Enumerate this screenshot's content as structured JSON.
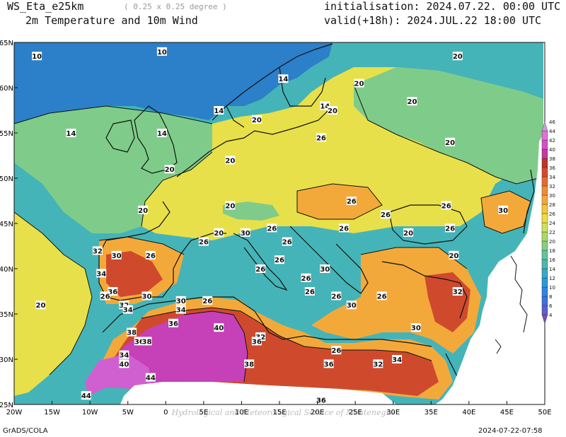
{
  "header": {
    "model": "WS_Eta_e25km",
    "resolution": "( 0.25 x 0.25 degree )",
    "product": "2m Temperature and 10m Wind",
    "initialisation": "initialisation: 2024.07.22. 00:00 UTC",
    "valid": "valid(+18h): 2024.JUL.22 18:00 UTC"
  },
  "footer": {
    "left": "GrADS/COLA",
    "right": "2024-07-22-07:58"
  },
  "map": {
    "watermark": "Hydrological and Meteorological Service of Montenegro",
    "lon_ticks": [
      "20W",
      "15W",
      "10W",
      "5W",
      "0",
      "5E",
      "10E",
      "15E",
      "20E",
      "25E",
      "30E",
      "35E",
      "40E",
      "45E",
      "50E"
    ],
    "lat_ticks": [
      "25N",
      "30N",
      "35N",
      "40N",
      "45N",
      "50N",
      "55N",
      "60N",
      "65N"
    ],
    "contour_labels": [
      {
        "text": "10",
        "lon": -17.0,
        "lat": 63.5
      },
      {
        "text": "10",
        "lon": -0.5,
        "lat": 64.0
      },
      {
        "text": "14",
        "lon": 15.5,
        "lat": 61.0
      },
      {
        "text": "20",
        "lon": 38.5,
        "lat": 63.5
      },
      {
        "text": "20",
        "lon": 25.5,
        "lat": 60.5
      },
      {
        "text": "14",
        "lon": 7.0,
        "lat": 57.5
      },
      {
        "text": "20",
        "lon": 12.0,
        "lat": 56.5
      },
      {
        "text": "14",
        "lon": 21.0,
        "lat": 58.0
      },
      {
        "text": "20",
        "lon": 22.0,
        "lat": 57.5
      },
      {
        "text": "20",
        "lon": 32.5,
        "lat": 58.5
      },
      {
        "text": "14",
        "lon": -12.5,
        "lat": 55.0
      },
      {
        "text": "14",
        "lon": -0.5,
        "lat": 55.0
      },
      {
        "text": "20",
        "lon": 8.5,
        "lat": 52.0
      },
      {
        "text": "26",
        "lon": 20.5,
        "lat": 54.5
      },
      {
        "text": "20",
        "lon": 37.5,
        "lat": 54.0
      },
      {
        "text": "20",
        "lon": 0.5,
        "lat": 51.0
      },
      {
        "text": "26",
        "lon": 24.5,
        "lat": 47.5
      },
      {
        "text": "20",
        "lon": 8.5,
        "lat": 47.0
      },
      {
        "text": "20",
        "lon": -3.0,
        "lat": 46.5
      },
      {
        "text": "26",
        "lon": 29.0,
        "lat": 46.0
      },
      {
        "text": "26",
        "lon": 37.0,
        "lat": 47.0
      },
      {
        "text": "30",
        "lon": 44.5,
        "lat": 46.5
      },
      {
        "text": "26",
        "lon": 14.0,
        "lat": 44.5
      },
      {
        "text": "26",
        "lon": 23.5,
        "lat": 44.5
      },
      {
        "text": "20",
        "lon": 7.0,
        "lat": 44.0
      },
      {
        "text": "30",
        "lon": 10.5,
        "lat": 44.0
      },
      {
        "text": "20",
        "lon": 32.0,
        "lat": 44.0
      },
      {
        "text": "26",
        "lon": 37.5,
        "lat": 44.5
      },
      {
        "text": "26",
        "lon": 5.0,
        "lat": 43.0
      },
      {
        "text": "26",
        "lon": 16.0,
        "lat": 43.0
      },
      {
        "text": "32",
        "lon": -9.0,
        "lat": 42.0
      },
      {
        "text": "30",
        "lon": -6.5,
        "lat": 41.5
      },
      {
        "text": "26",
        "lon": -2.0,
        "lat": 41.5
      },
      {
        "text": "26",
        "lon": 15.0,
        "lat": 41.0
      },
      {
        "text": "20",
        "lon": 38.0,
        "lat": 41.5
      },
      {
        "text": "34",
        "lon": -8.5,
        "lat": 39.5
      },
      {
        "text": "26",
        "lon": 12.5,
        "lat": 40.0
      },
      {
        "text": "30",
        "lon": 21.0,
        "lat": 40.0
      },
      {
        "text": "26",
        "lon": 18.5,
        "lat": 39.0
      },
      {
        "text": "36",
        "lon": -7.0,
        "lat": 37.5
      },
      {
        "text": "26",
        "lon": -8.0,
        "lat": 37.0
      },
      {
        "text": "30",
        "lon": -2.5,
        "lat": 37.0
      },
      {
        "text": "26",
        "lon": 19.0,
        "lat": 37.5
      },
      {
        "text": "26",
        "lon": 22.5,
        "lat": 37.0
      },
      {
        "text": "32",
        "lon": 38.5,
        "lat": 37.5
      },
      {
        "text": "32",
        "lon": -5.5,
        "lat": 36.0
      },
      {
        "text": "34",
        "lon": -5.0,
        "lat": 35.5
      },
      {
        "text": "30",
        "lon": 2.0,
        "lat": 36.5
      },
      {
        "text": "34",
        "lon": 2.0,
        "lat": 35.5
      },
      {
        "text": "26",
        "lon": 5.5,
        "lat": 36.5
      },
      {
        "text": "30",
        "lon": 24.5,
        "lat": 36.0
      },
      {
        "text": "26",
        "lon": 28.5,
        "lat": 37.0
      },
      {
        "text": "36",
        "lon": 1.0,
        "lat": 34.0
      },
      {
        "text": "40",
        "lon": 7.0,
        "lat": 33.5
      },
      {
        "text": "30",
        "lon": 33.0,
        "lat": 33.5
      },
      {
        "text": "38",
        "lon": -4.5,
        "lat": 33.0
      },
      {
        "text": "36",
        "lon": -3.5,
        "lat": 32.0
      },
      {
        "text": "38",
        "lon": -2.5,
        "lat": 32.0
      },
      {
        "text": "32",
        "lon": 12.5,
        "lat": 32.5
      },
      {
        "text": "36",
        "lon": 12.0,
        "lat": 32.0
      },
      {
        "text": "34",
        "lon": -5.5,
        "lat": 30.5
      },
      {
        "text": "26",
        "lon": 22.5,
        "lat": 31.0
      },
      {
        "text": "40",
        "lon": -5.5,
        "lat": 29.5
      },
      {
        "text": "38",
        "lon": 11.0,
        "lat": 29.5
      },
      {
        "text": "36",
        "lon": 21.5,
        "lat": 29.5
      },
      {
        "text": "32",
        "lon": 28.0,
        "lat": 29.5
      },
      {
        "text": "34",
        "lon": 30.5,
        "lat": 30.0
      },
      {
        "text": "44",
        "lon": -2.0,
        "lat": 28.0
      },
      {
        "text": "44",
        "lon": -10.5,
        "lat": 26.0
      },
      {
        "text": "36",
        "lon": 20.5,
        "lat": 25.5
      },
      {
        "text": "20",
        "lon": -16.5,
        "lat": 36.0
      }
    ]
  },
  "colorbar": {
    "levels": [
      "4",
      "6",
      "8",
      "10",
      "12",
      "14",
      "16",
      "18",
      "20",
      "22",
      "24",
      "26",
      "28",
      "30",
      "32",
      "34",
      "36",
      "38",
      "40",
      "42",
      "44",
      "46"
    ],
    "colors": [
      "#7b4fb0",
      "#5b5fd0",
      "#3f6fd8",
      "#2f86e0",
      "#2c98d8",
      "#38a8c8",
      "#4cb8b0",
      "#64c49c",
      "#86cf80",
      "#a9d86c",
      "#cfe05a",
      "#eedd3e",
      "#f6c53a",
      "#f4a83a",
      "#ee8c38",
      "#e46a32",
      "#d44a2e",
      "#b8342e",
      "#c43aa0",
      "#d450c8",
      "#e070d8",
      "#c8a0d8"
    ]
  },
  "bands": {
    "cold_blue": "#2c7fc9",
    "teal": "#45b4b8",
    "green": "#7fcc8a",
    "yellow": "#e8e04a",
    "orange": "#f3a93a",
    "red": "#cf4a2d",
    "dark_red": "#a8322a",
    "magenta": "#c640b8",
    "violet": "#d060d0"
  }
}
